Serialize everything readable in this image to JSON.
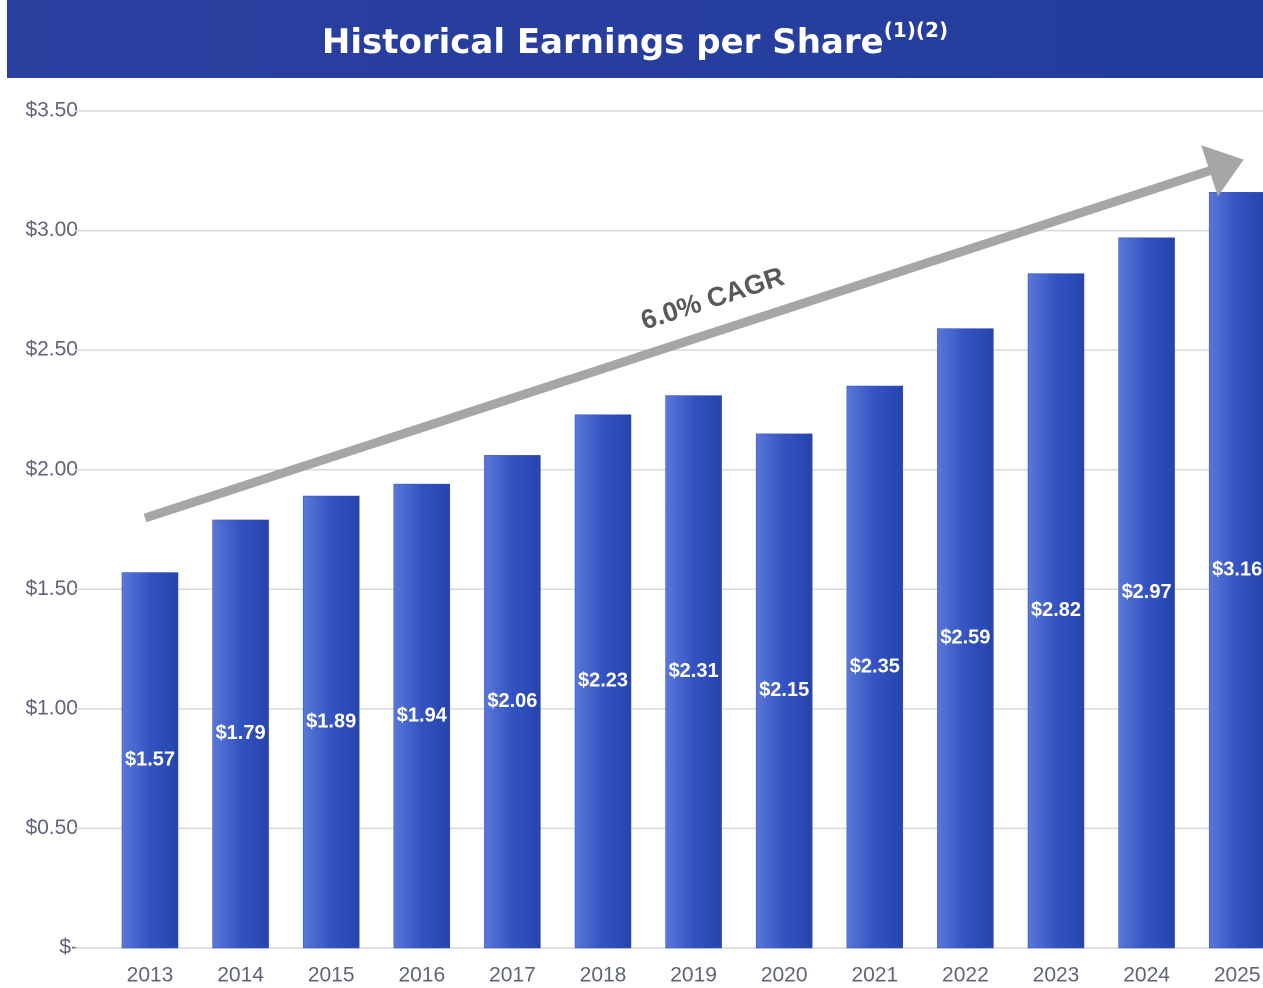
{
  "chart_data": {
    "type": "bar",
    "title": "Historical Earnings per Share",
    "title_superscript": "(1)(2)",
    "annotation": "6.0% CAGR",
    "categories": [
      "2013",
      "2014",
      "2015",
      "2016",
      "2017",
      "2018",
      "2019",
      "2020",
      "2021",
      "2022",
      "2023",
      "2024",
      "2025"
    ],
    "values": [
      1.57,
      1.79,
      1.89,
      1.94,
      2.06,
      2.23,
      2.31,
      2.15,
      2.35,
      2.59,
      2.82,
      2.97,
      3.16
    ],
    "value_labels": [
      "$1.57",
      "$1.79",
      "$1.89",
      "$1.94",
      "$2.06",
      "$2.23",
      "$2.31",
      "$2.15",
      "$2.35",
      "$2.59",
      "$2.82",
      "$2.97",
      "$3.16"
    ],
    "color": "#2f4dbb",
    "ylim": [
      0,
      3.5
    ],
    "yticks": [
      {
        "value": 0,
        "label": "$-"
      },
      {
        "value": 0.5,
        "label": "$0.50"
      },
      {
        "value": 1,
        "label": "$1.00"
      },
      {
        "value": 1.5,
        "label": "$1.50"
      },
      {
        "value": 2,
        "label": "$2.00"
      },
      {
        "value": 2.5,
        "label": "$2.50"
      },
      {
        "value": 3,
        "label": "$3.00"
      },
      {
        "value": 3.5,
        "label": "$3.50"
      }
    ],
    "grid": true
  }
}
